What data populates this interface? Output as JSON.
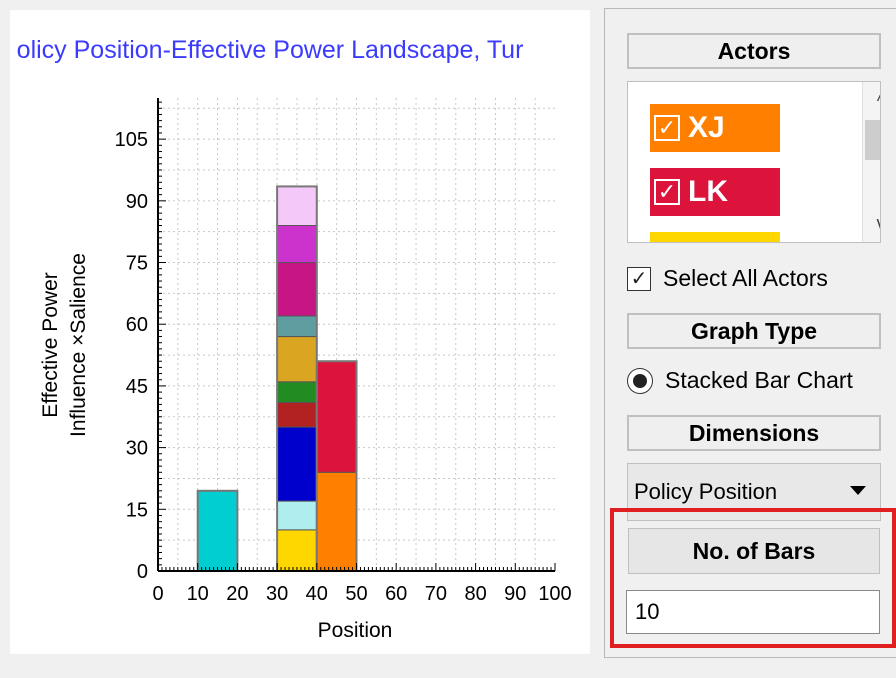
{
  "chart": {
    "title": "Policy Position-Effective Power Landscape, Tur"
  },
  "chart_data": {
    "type": "bar",
    "stacked": true,
    "title": "Policy Position-Effective Power Landscape, Tur",
    "xlabel": "Position",
    "ylabel": [
      "Effective Power",
      "Influence ×Salience"
    ],
    "xlim": [
      0,
      100
    ],
    "ylim": [
      0,
      115
    ],
    "xticks": [
      0,
      10,
      20,
      30,
      40,
      50,
      60,
      70,
      80,
      90,
      100
    ],
    "yticks": [
      0,
      15,
      30,
      45,
      60,
      75,
      90,
      105
    ],
    "grid": true,
    "bars": [
      {
        "x_start": 10,
        "x_end": 20,
        "segments": [
          {
            "value": 19.5,
            "color": "#00ced1"
          }
        ]
      },
      {
        "x_start": 30,
        "x_end": 40,
        "segments": [
          {
            "value": 10,
            "color": "#ffd700"
          },
          {
            "value": 7,
            "color": "#afeeee"
          },
          {
            "value": 18,
            "color": "#0000cd"
          },
          {
            "value": 6,
            "color": "#b22222"
          },
          {
            "value": 5,
            "color": "#228b22"
          },
          {
            "value": 11,
            "color": "#daa520"
          },
          {
            "value": 5,
            "color": "#5f9ea0"
          },
          {
            "value": 13,
            "color": "#c71585"
          },
          {
            "value": 9,
            "color": "#cc33cc"
          },
          {
            "value": 9.5,
            "color": "#f4c8f8"
          }
        ]
      },
      {
        "x_start": 40,
        "x_end": 50,
        "segments": [
          {
            "value": 24,
            "color": "#ff8000"
          },
          {
            "value": 27,
            "color": "#dc143c"
          }
        ]
      }
    ]
  },
  "sidebar": {
    "actors_header": "Actors",
    "actors": [
      {
        "label": "XJ",
        "checked": true,
        "color": "#ff8000"
      },
      {
        "label": "LK",
        "checked": true,
        "color": "#dc143c"
      },
      {
        "label": "",
        "checked": true,
        "color": "#ffd700"
      }
    ],
    "select_all_label": "Select All Actors",
    "graph_type_header": "Graph Type",
    "graph_type_option": "Stacked Bar Chart",
    "dimensions_header": "Dimensions",
    "dimension_selected": "Policy Position",
    "bars_header": "No. of Bars",
    "bars_value": "10"
  },
  "icons": {
    "check": "✓",
    "scroll_up": "^",
    "scroll_down": "v"
  }
}
